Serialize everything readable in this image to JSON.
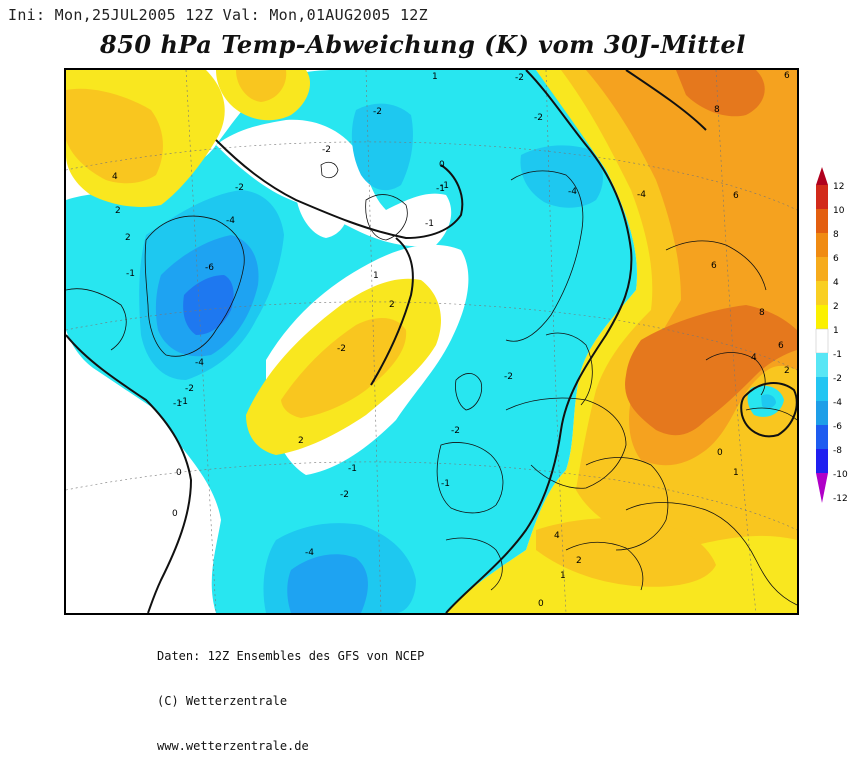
{
  "header": {
    "init_label": "Ini:",
    "init_value": "Mon,25JUL2005 12Z",
    "valid_label": "Val:",
    "valid_value": "Mon,01AUG2005 12Z"
  },
  "title": "850 hPa Temp-Abweichung (K) vom 30J-Mittel",
  "footer": {
    "line1": "Daten: 12Z Ensembles des GFS von NCEP",
    "line2": "(C) Wetterzentrale",
    "line3": "www.wetterzentrale.de"
  },
  "legend": {
    "labels": [
      "12",
      "10",
      "8",
      "6",
      "4",
      "2",
      "1",
      "-1",
      "-2",
      "-4",
      "-6",
      "-8",
      "-10",
      "-12"
    ],
    "colors": [
      "#b0001e",
      "#d22a1a",
      "#e35f10",
      "#f08b12",
      "#f6ab1c",
      "#f9cf22",
      "#fbf000",
      "#ffffff",
      "#58e6f5",
      "#22c5f2",
      "#1e9ee8",
      "#1e5cf0",
      "#2020f0",
      "#b000c8"
    ]
  },
  "map_colors": {
    "orange_dark": "#e5781d",
    "orange": "#f5a21f",
    "gold": "#f9c61f",
    "yellow": "#f9e71f",
    "white": "#ffffff",
    "cyan_light": "#28e6f0",
    "cyan": "#1ec8f0",
    "blue_light": "#1ea3f2",
    "blue": "#1e78f0"
  },
  "contour_labels": [
    "1",
    "-2",
    "-2",
    "-2",
    "-2",
    "-4",
    "-6",
    "-4",
    "-2",
    "-1",
    "2",
    "4",
    "2",
    "-1",
    "0",
    "-1",
    "2",
    "1",
    "-1",
    "-2",
    "-4",
    "-1",
    "-2",
    "-2",
    "6",
    "8",
    "6",
    "6",
    "8",
    "6",
    "4",
    "2",
    "0",
    "1",
    "-2",
    "-4",
    "-1",
    "0",
    "2",
    "4",
    "2",
    "1",
    "0",
    "-2",
    "-1",
    "-1",
    "0",
    "-4"
  ]
}
